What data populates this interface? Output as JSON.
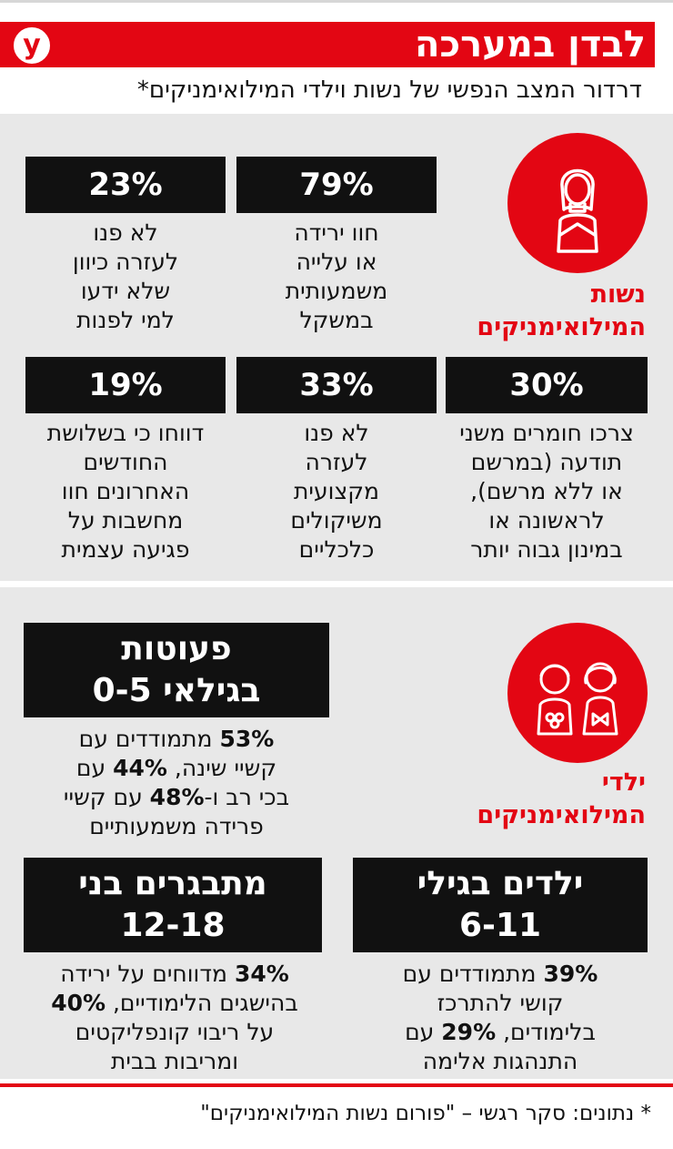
{
  "header": {
    "title": "לבדן במערכה",
    "logo_letter": "y",
    "subtitle": "דרדור המצב הנפשי של נשות וילדי המילואימניקים*"
  },
  "wives": {
    "label_line1": "נשות",
    "label_line2": "המילואימניקים",
    "icon": "woman-icon",
    "stats": [
      {
        "value": "79%",
        "desc": [
          "חוו ירידה",
          "או עלייה",
          "משמעותית",
          "במשקל"
        ]
      },
      {
        "value": "23%",
        "desc": [
          "לא פנו",
          "לעזרה כיוון",
          "שלא ידעו",
          "למי לפנות"
        ]
      },
      {
        "value": "30%",
        "desc": [
          "צרכו חומרים משני",
          "תודעה (במרשם",
          "או ללא מרשם),",
          "לראשונה או",
          "במינון גבוה יותר"
        ]
      },
      {
        "value": "33%",
        "desc": [
          "לא פנו",
          "לעזרה",
          "מקצועית",
          "משיקולים",
          "כלכליים"
        ]
      },
      {
        "value": "19%",
        "desc": [
          "דווחו כי בשלושת",
          "החודשים",
          "האחרונים חוו",
          "מחשבות על",
          "פגיעה עצמית"
        ]
      }
    ]
  },
  "children": {
    "label_line1": "ילדי",
    "label_line2": "המילואימניקים",
    "icon": "children-icon",
    "groups": [
      {
        "title_line1": "פעוטות",
        "title_line2": "בגילאי 0-5",
        "desc": [
          {
            "parts": [
              {
                "b": "53%"
              },
              {
                "t": " מתמודדים עם"
              }
            ]
          },
          {
            "parts": [
              {
                "t": "קשיי שינה, "
              },
              {
                "b": "44%"
              },
              {
                "t": " עם"
              }
            ]
          },
          {
            "parts": [
              {
                "t": "בכי רב ו-"
              },
              {
                "b": "48%"
              },
              {
                "t": " עם קשיי"
              }
            ]
          },
          {
            "parts": [
              {
                "t": "פרידה משמעותיים"
              }
            ]
          }
        ]
      },
      {
        "title_line1": "ילדים בגילי",
        "title_line2": "6-11",
        "desc": [
          {
            "parts": [
              {
                "b": "39%"
              },
              {
                "t": " מתמודדים עם"
              }
            ]
          },
          {
            "parts": [
              {
                "t": "קושי להתרכז"
              }
            ]
          },
          {
            "parts": [
              {
                "t": "בלימודים, "
              },
              {
                "b": "29%"
              },
              {
                "t": " עם"
              }
            ]
          },
          {
            "parts": [
              {
                "t": "התנהגות אלימה"
              }
            ]
          }
        ]
      },
      {
        "title_line1": "מתבגרים בני",
        "title_line2": "12-18",
        "desc": [
          {
            "parts": [
              {
                "b": "34%"
              },
              {
                "t": " מדווחים על ירידה"
              }
            ]
          },
          {
            "parts": [
              {
                "t": "בהישגים הלימודיים, "
              },
              {
                "b": "40%"
              }
            ]
          },
          {
            "parts": [
              {
                "t": "על ריבוי קונפליקטים"
              }
            ]
          },
          {
            "parts": [
              {
                "t": "ומריבות בבית"
              }
            ]
          }
        ]
      }
    ]
  },
  "footer": {
    "text": "* נתונים: סקר רגשי – \"פורום נשות המילואימניקים\""
  },
  "colors": {
    "accent": "#e30613",
    "box": "#111111",
    "panel": "#e8e8e8"
  }
}
